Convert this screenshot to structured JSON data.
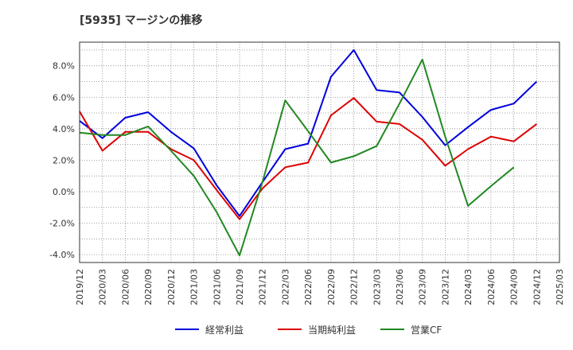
{
  "chart_data": {
    "type": "line",
    "title": "[5935]  マージンの推移",
    "xlabel": "",
    "ylabel": "",
    "ylim": [
      -4.5,
      9.5
    ],
    "yticks": [
      -4.0,
      -2.0,
      0.0,
      2.0,
      4.0,
      6.0,
      8.0
    ],
    "ytick_labels": [
      "-4.0%",
      "-2.0%",
      "0.0%",
      "2.0%",
      "4.0%",
      "6.0%",
      "8.0%"
    ],
    "grid": true,
    "legend_position": "bottom",
    "categories": [
      "2019/12",
      "2020/03",
      "2020/06",
      "2020/09",
      "2020/12",
      "2021/03",
      "2021/06",
      "2021/09",
      "2021/12",
      "2022/03",
      "2022/06",
      "2022/09",
      "2022/12",
      "2023/03",
      "2023/06",
      "2023/09",
      "2023/12",
      "2024/03",
      "2024/06",
      "2024/09",
      "2024/12",
      "2025/03"
    ],
    "series": [
      {
        "name": "経常利益",
        "color": "#0000dd",
        "values": [
          4.5,
          3.4,
          4.7,
          5.05,
          3.8,
          2.75,
          0.4,
          -1.55,
          0.6,
          2.7,
          3.05,
          7.3,
          9.0,
          6.45,
          6.3,
          4.75,
          2.95,
          4.1,
          5.2,
          5.6,
          7.0,
          null
        ]
      },
      {
        "name": "当期純利益",
        "color": "#dd0000",
        "values": [
          5.1,
          2.6,
          3.8,
          3.8,
          2.7,
          2.0,
          0.1,
          -1.75,
          0.2,
          1.55,
          1.85,
          4.85,
          5.95,
          4.45,
          4.3,
          3.3,
          1.65,
          2.7,
          3.5,
          3.2,
          4.3,
          null
        ]
      },
      {
        "name": "営業CF",
        "color": "#228822",
        "values": [
          3.75,
          3.6,
          3.6,
          4.15,
          2.6,
          1.0,
          -1.3,
          -4.05,
          0.6,
          5.8,
          3.85,
          1.85,
          2.25,
          2.9,
          5.6,
          8.4,
          3.5,
          -0.9,
          0.35,
          1.55,
          null,
          null
        ]
      }
    ]
  }
}
